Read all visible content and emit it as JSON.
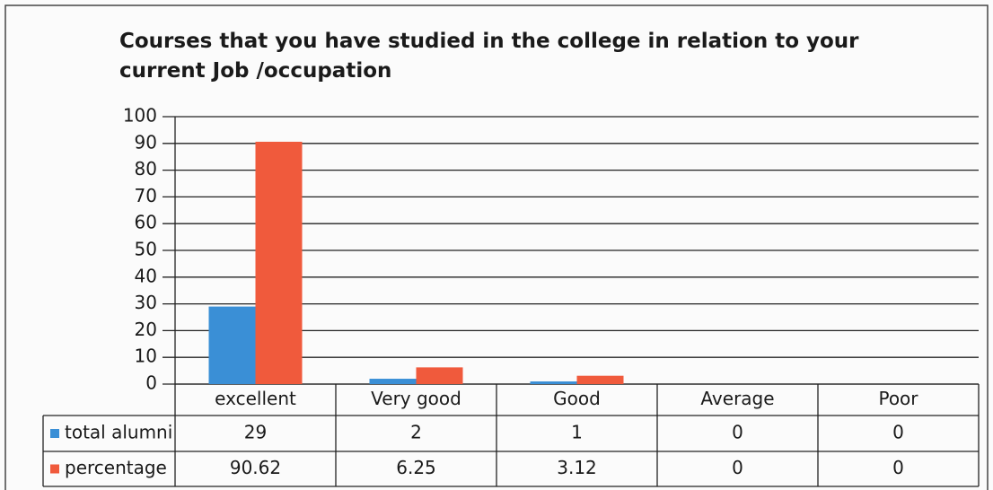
{
  "chart_data": {
    "type": "bar",
    "title": "Courses that you have studied in the college in relation to your current Job /occupation",
    "categories": [
      "excellent",
      "Very good",
      "Good",
      "Average",
      "Poor"
    ],
    "series": [
      {
        "name": "total alumni",
        "color": "#3a8fd6",
        "values": [
          29,
          2,
          1,
          0,
          0
        ]
      },
      {
        "name": "percentage",
        "color": "#f05a3c",
        "values": [
          90.62,
          6.25,
          3.12,
          0,
          0
        ]
      }
    ],
    "ylim": [
      0,
      100
    ],
    "yticks": [
      0,
      10,
      20,
      30,
      40,
      50,
      60,
      70,
      80,
      90,
      100
    ],
    "grid": true,
    "legend": "bottom-left"
  }
}
